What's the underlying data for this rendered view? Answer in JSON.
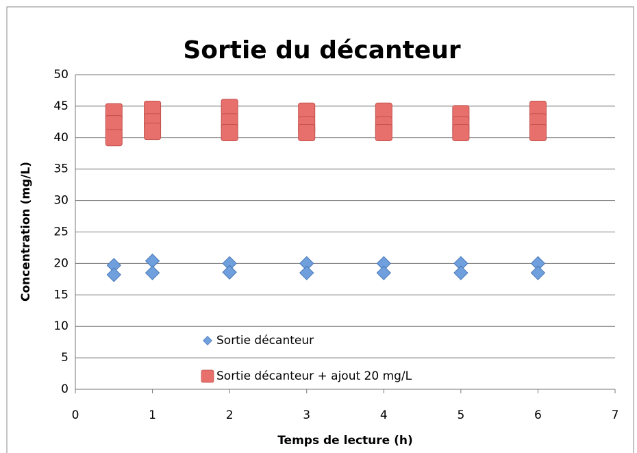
{
  "chart_data": {
    "type": "scatter",
    "title": "Sortie du décanteur",
    "x_label": "Temps de lecture (h)",
    "y_label": "Concentration (mg/L)",
    "xlim": [
      0,
      7
    ],
    "xticks": [
      0,
      1,
      2,
      3,
      4,
      5,
      6,
      7
    ],
    "ylim": [
      0,
      50
    ],
    "yticks": [
      0,
      5,
      10,
      15,
      20,
      25,
      30,
      35,
      40,
      45,
      50
    ],
    "grid": true,
    "legend": "lower center",
    "series": [
      {
        "name": "Sortie décanteur",
        "color": "#6f9fdc",
        "marker": "diamond",
        "x": [
          0.5,
          0.5,
          1,
          1,
          2,
          2,
          3,
          3,
          4,
          4,
          5,
          5,
          6,
          6
        ],
        "values": [
          19.7,
          18.2,
          20.4,
          18.5,
          20.0,
          18.6,
          20.0,
          18.5,
          20.0,
          18.5,
          20.0,
          18.5,
          20.0,
          18.5
        ]
      },
      {
        "name": "Sortie décanteur + ajout 20 mg/L",
        "color": "#e8706c",
        "marker": "square",
        "x": [
          0.5,
          0.5,
          0.5,
          1,
          1,
          1,
          2,
          2,
          2,
          3,
          3,
          3,
          4,
          4,
          4,
          5,
          5,
          5,
          6,
          6,
          6
        ],
        "values": [
          44.1,
          42.2,
          40.0,
          44.5,
          42.5,
          41.0,
          44.8,
          42.5,
          40.8,
          44.2,
          42.0,
          40.8,
          44.2,
          42.0,
          40.8,
          43.8,
          42.0,
          40.8,
          44.5,
          42.5,
          40.8
        ]
      }
    ]
  }
}
